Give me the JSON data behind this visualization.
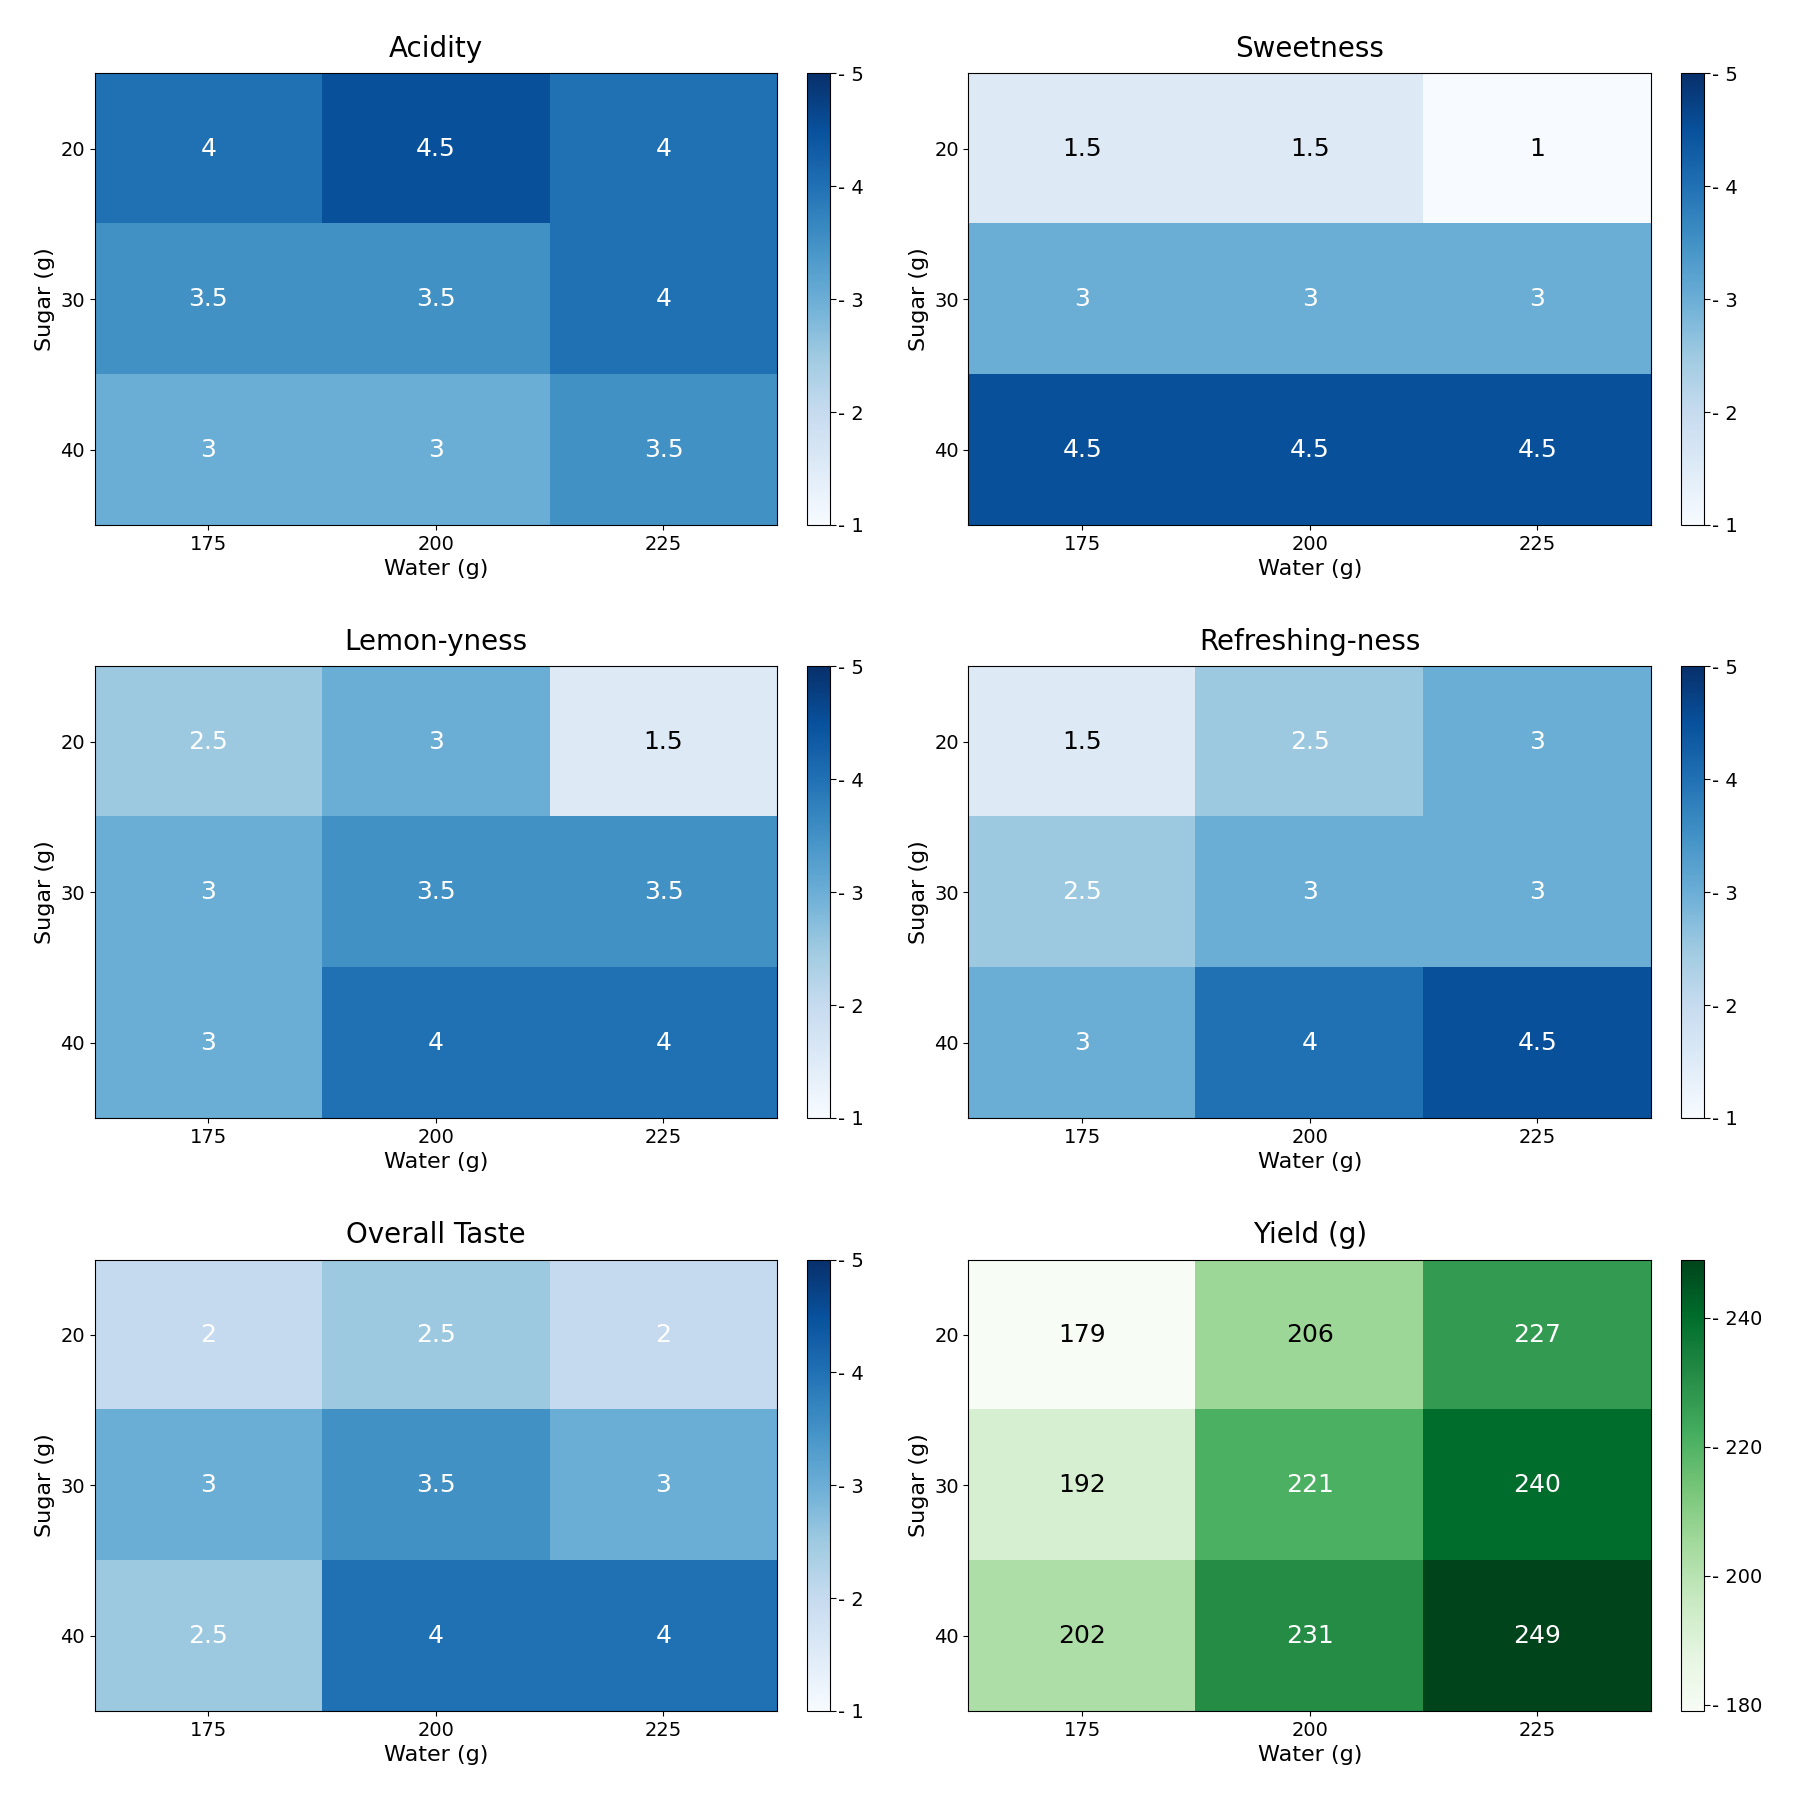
{
  "panels": [
    {
      "title": "Acidity",
      "data": [
        [
          4.0,
          4.5,
          4.0
        ],
        [
          3.5,
          3.5,
          4.0
        ],
        [
          3.0,
          3.0,
          3.5
        ]
      ],
      "cmap": "Blues",
      "vmin": 1,
      "vmax": 5,
      "colorbar_ticks": [
        1,
        2,
        3,
        4,
        5
      ],
      "colorbar_ticklabels": [
        "- 1",
        "- 2",
        "- 3",
        "- 4",
        "- 5"
      ],
      "text_color": "white",
      "text_threshold": 0.25
    },
    {
      "title": "Sweetness",
      "data": [
        [
          1.5,
          1.5,
          1.0
        ],
        [
          3.0,
          3.0,
          3.0
        ],
        [
          4.5,
          4.5,
          4.5
        ]
      ],
      "cmap": "Blues",
      "vmin": 1,
      "vmax": 5,
      "colorbar_ticks": [
        1,
        2,
        3,
        4,
        5
      ],
      "colorbar_ticklabels": [
        "- 1",
        "- 2",
        "- 3",
        "- 4",
        "- 5"
      ],
      "text_color": "white",
      "text_threshold": 0.25
    },
    {
      "title": "Lemon-yness",
      "data": [
        [
          2.5,
          3.0,
          1.5
        ],
        [
          3.0,
          3.5,
          3.5
        ],
        [
          3.0,
          4.0,
          4.0
        ]
      ],
      "cmap": "Blues",
      "vmin": 1,
      "vmax": 5,
      "colorbar_ticks": [
        1,
        2,
        3,
        4,
        5
      ],
      "colorbar_ticklabels": [
        "- 1",
        "- 2",
        "- 3",
        "- 4",
        "- 5"
      ],
      "text_color": "white",
      "text_threshold": 0.25
    },
    {
      "title": "Refreshing-ness",
      "data": [
        [
          1.5,
          2.5,
          3.0
        ],
        [
          2.5,
          3.0,
          3.0
        ],
        [
          3.0,
          4.0,
          4.5
        ]
      ],
      "cmap": "Blues",
      "vmin": 1,
      "vmax": 5,
      "colorbar_ticks": [
        1,
        2,
        3,
        4,
        5
      ],
      "colorbar_ticklabels": [
        "- 1",
        "- 2",
        "- 3",
        "- 4",
        "- 5"
      ],
      "text_color": "white",
      "text_threshold": 0.25
    },
    {
      "title": "Overall Taste",
      "data": [
        [
          2.0,
          2.5,
          2.0
        ],
        [
          3.0,
          3.5,
          3.0
        ],
        [
          2.5,
          4.0,
          4.0
        ]
      ],
      "cmap": "Blues",
      "vmin": 1,
      "vmax": 5,
      "colorbar_ticks": [
        1,
        2,
        3,
        4,
        5
      ],
      "colorbar_ticklabels": [
        "- 1",
        "- 2",
        "- 3",
        "- 4",
        "- 5"
      ],
      "text_color": "white",
      "text_threshold": 0.25
    },
    {
      "title": "Yield (g)",
      "data": [
        [
          179,
          206,
          227
        ],
        [
          192,
          221,
          240
        ],
        [
          202,
          231,
          249
        ]
      ],
      "cmap": "Greens",
      "vmin": 179,
      "vmax": 249,
      "colorbar_ticks": [
        180,
        200,
        220,
        240
      ],
      "colorbar_ticklabels": [
        "- 180",
        "- 200",
        "- 220",
        "- 240"
      ],
      "text_color": "auto",
      "text_threshold": 0.4
    }
  ],
  "sugar_labels": [
    "20",
    "30",
    "40"
  ],
  "water_labels": [
    "175",
    "200",
    "225"
  ],
  "xlabel": "Water (g)",
  "ylabel": "Sugar (g)",
  "figsize": [
    18.0,
    18.0
  ],
  "dpi": 100,
  "title_fontsize": 20,
  "label_fontsize": 16,
  "tick_fontsize": 14,
  "annot_fontsize": 18,
  "cbar_fontsize": 14,
  "bg_color": "#ffffff"
}
